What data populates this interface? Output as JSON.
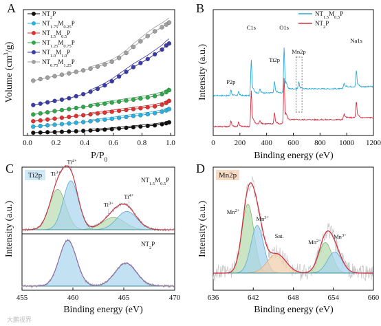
{
  "watermark": "大鹏视界",
  "chart_data": [
    {
      "panel": "A",
      "type": "scatter",
      "xlabel": "P/P0",
      "xlabel_main": "P/P",
      "xlabel_sub": "0",
      "ylabel": "Volume (cm³/g)",
      "ylabel_main": "Volume (cm",
      "ylabel_sup": "3",
      "ylabel_end": "/g)",
      "xlim": [
        0,
        1.0
      ],
      "xticks": [
        "0.0",
        "0.2",
        "0.4",
        "0.6",
        "0.8",
        "1.0"
      ],
      "legend_position": "top-left",
      "x": [
        0.04,
        0.09,
        0.14,
        0.19,
        0.24,
        0.29,
        0.34,
        0.39,
        0.44,
        0.49,
        0.54,
        0.59,
        0.64,
        0.69,
        0.74,
        0.79,
        0.84,
        0.89,
        0.94,
        0.97,
        0.99
      ],
      "series": [
        {
          "name": "NT2P",
          "label_parts": [
            [
              "NT",
              ""
            ],
            [
              "2",
              "sub"
            ],
            [
              "P",
              ""
            ]
          ],
          "color": "#111111",
          "values": [
            0.5,
            0.7,
            0.9,
            1.0,
            1.2,
            1.4,
            1.6,
            1.9,
            2.2,
            2.5,
            2.8,
            3.2,
            3.7,
            4.1,
            4.6,
            5.1,
            5.6,
            6.0,
            6.8,
            7.5,
            8.2
          ]
        },
        {
          "name": "NT1.75M0.25P",
          "label_parts": [
            [
              "NT",
              ""
            ],
            [
              "1.75",
              "sub"
            ],
            [
              "M",
              ""
            ],
            [
              "0.25",
              "sub"
            ],
            [
              "P",
              ""
            ]
          ],
          "color": "#2ab0e0",
          "values": [
            5.0,
            5.5,
            6.0,
            6.4,
            6.9,
            7.4,
            7.9,
            8.4,
            9.0,
            9.6,
            10.2,
            10.8,
            11.5,
            12.2,
            12.9,
            13.5,
            14.2,
            15.0,
            16.0,
            17.0,
            18.0
          ]
        },
        {
          "name": "NT1.5M0.5P",
          "label_parts": [
            [
              "NT",
              ""
            ],
            [
              "1.5",
              "sub"
            ],
            [
              "M",
              ""
            ],
            [
              "0.5",
              "sub"
            ],
            [
              "P",
              ""
            ]
          ],
          "color": "#e03030",
          "values": [
            9.0,
            9.6,
            10.3,
            10.9,
            11.6,
            12.2,
            12.9,
            13.5,
            14.1,
            14.8,
            15.4,
            16.0,
            16.7,
            17.3,
            18.0,
            18.6,
            19.3,
            20.0,
            21.2,
            22.5,
            24.0
          ]
        },
        {
          "name": "NT1.25M0.75P",
          "label_parts": [
            [
              "NT",
              ""
            ],
            [
              "1.25",
              "sub"
            ],
            [
              "M",
              ""
            ],
            [
              "0.75",
              "sub"
            ],
            [
              "P",
              ""
            ]
          ],
          "color": "#2ea84a",
          "values": [
            14.0,
            14.8,
            15.6,
            16.5,
            17.3,
            18.0,
            18.8,
            19.6,
            20.4,
            21.2,
            22.0,
            22.8,
            23.5,
            24.3,
            25.0,
            25.8,
            26.6,
            27.6,
            29.0,
            30.5,
            32.0
          ]
        },
        {
          "name": "NT1.0M1.0P",
          "label_parts": [
            [
              "NT",
              ""
            ],
            [
              "1.0",
              "sub"
            ],
            [
              "M",
              ""
            ],
            [
              "1.0",
              "sub"
            ],
            [
              "P",
              ""
            ]
          ],
          "color": "#3a3aa8",
          "values": [
            21.0,
            22.0,
            23.0,
            24.0,
            25.0,
            26.0,
            27.5,
            29.0,
            30.8,
            33.0,
            35.5,
            38.5,
            42.0,
            45.5,
            49.0,
            52.0,
            55.0,
            58.5,
            62.0,
            65.0,
            66.5
          ]
        },
        {
          "name": "NT0.75M1.25P",
          "label_parts": [
            [
              "NT",
              ""
            ],
            [
              "0.75",
              "sub"
            ],
            [
              "M",
              ""
            ],
            [
              "1.25",
              "sub"
            ],
            [
              "P",
              ""
            ]
          ],
          "color": "#a0a0a0",
          "values": [
            39.0,
            40.2,
            41.3,
            42.3,
            43.4,
            44.4,
            45.5,
            46.6,
            47.9,
            49.4,
            51.0,
            53.0,
            55.8,
            59.5,
            64.0,
            68.0,
            72.0,
            75.5,
            78.5,
            80.5,
            82.0
          ]
        }
      ]
    },
    {
      "panel": "B",
      "type": "line",
      "xlabel": "Binding energy (eV)",
      "ylabel": "Intensity (a.u.)",
      "xlim": [
        0,
        1200
      ],
      "xticks": [
        "0",
        "200",
        "400",
        "600",
        "800",
        "1000",
        "1200"
      ],
      "legend_position": "top-right",
      "series": [
        {
          "name": "NT1.5M0.5P",
          "label_parts": [
            [
              "NT",
              ""
            ],
            [
              "1.5",
              "sub"
            ],
            [
              "M",
              ""
            ],
            [
              "0.5",
              "sub"
            ],
            [
              "P",
              ""
            ]
          ],
          "color": "#29a9d8",
          "offset": 45
        },
        {
          "name": "NT2P",
          "label_parts": [
            [
              "NT",
              ""
            ],
            [
              "2",
              "sub"
            ],
            [
              "P",
              ""
            ]
          ],
          "color": "#d03040",
          "offset": 0
        }
      ],
      "peaks": [
        {
          "x": 133,
          "h": 8
        },
        {
          "x": 190,
          "h": 6
        },
        {
          "x": 285,
          "h": 48
        },
        {
          "x": 350,
          "h": 5
        },
        {
          "x": 459,
          "h": 15
        },
        {
          "x": 531,
          "h": 62
        },
        {
          "x": 641,
          "h": 10
        },
        {
          "x": 978,
          "h": 6
        },
        {
          "x": 1072,
          "h": 22
        }
      ],
      "annotations": [
        {
          "text": "P2p",
          "x": 133
        },
        {
          "text": "C1s",
          "x": 285
        },
        {
          "text": "Ti2p",
          "x": 459
        },
        {
          "text": "O1s",
          "x": 531
        },
        {
          "text": "Mn2p",
          "x": 641
        },
        {
          "text": "Na1s",
          "x": 1072
        }
      ]
    },
    {
      "panel": "C",
      "type": "line",
      "tag": "Ti2p",
      "xlabel": "Binding energy (eV)",
      "ylabel": "Intensity (a.u.)",
      "xlim": [
        455,
        470
      ],
      "xticks": [
        "455",
        "460",
        "465",
        "470"
      ],
      "top": {
        "label": "NT1.5M0.5P",
        "label_parts": [
          [
            "NT",
            ""
          ],
          [
            "1.5",
            "sub"
          ],
          [
            "M",
            ""
          ],
          [
            "0.5",
            "sub"
          ],
          [
            "P",
            ""
          ]
        ],
        "components": [
          {
            "name": "Ti3+",
            "center": 458.5,
            "sigma": 0.8,
            "amp": 0.66,
            "color": "#b8dcb0",
            "stroke": "#7fb878"
          },
          {
            "name": "Ti4+",
            "center": 459.8,
            "sigma": 0.75,
            "amp": 0.8,
            "color": "#a8d4ec",
            "stroke": "#5fa8d0"
          },
          {
            "name": "Ti3+",
            "center": 464.0,
            "sigma": 1.1,
            "amp": 0.2,
            "color": "#b8dcb0",
            "stroke": "#7fb878"
          },
          {
            "name": "Ti4+",
            "center": 465.3,
            "sigma": 1.0,
            "amp": 0.3,
            "color": "#a8d4ec",
            "stroke": "#5fa8d0"
          }
        ],
        "labels": [
          {
            "t": "Ti",
            "s": "3+",
            "x": 458.3
          },
          {
            "t": "Ti",
            "s": "4+",
            "x": 459.9
          },
          {
            "t": "Ti",
            "s": "3+",
            "x": 463.5
          },
          {
            "t": "Ti",
            "s": "4+",
            "x": 465.5
          }
        ]
      },
      "bottom": {
        "label": "NT2P",
        "label_parts": [
          [
            "NT",
            ""
          ],
          [
            "2",
            "sub"
          ],
          [
            "P",
            ""
          ]
        ],
        "components": [
          {
            "name": "Ti4+",
            "center": 459.5,
            "sigma": 0.85,
            "amp": 0.9,
            "color": "#a8d4ec",
            "stroke": "#5fa8d0"
          },
          {
            "name": "Ti4+",
            "center": 465.2,
            "sigma": 1.05,
            "amp": 0.45,
            "color": "#a8d4ec",
            "stroke": "#5fa8d0"
          }
        ]
      }
    },
    {
      "panel": "D",
      "type": "line",
      "tag": "Mn2p",
      "xlabel": "Binding energy (eV)",
      "ylabel": "Intensity (a.u.)",
      "xlim": [
        636,
        660
      ],
      "xticks": [
        "636",
        "642",
        "648",
        "654",
        "660"
      ],
      "components": [
        {
          "name": "Mn2+",
          "center": 641.2,
          "sigma": 0.9,
          "amp": 0.72,
          "color": "#b8dcb0",
          "stroke": "#7fb878"
        },
        {
          "name": "Mn3+",
          "center": 642.6,
          "sigma": 0.95,
          "amp": 0.5,
          "color": "#a8d4ec",
          "stroke": "#5fa8d0"
        },
        {
          "name": "Sat.",
          "center": 645.5,
          "sigma": 1.4,
          "amp": 0.2,
          "color": "#f2cfae",
          "stroke": "#e0a878"
        },
        {
          "name": "Mn2+",
          "center": 652.8,
          "sigma": 1.0,
          "amp": 0.32,
          "color": "#b8dcb0",
          "stroke": "#7fb878"
        },
        {
          "name": "Mn3+",
          "center": 654.2,
          "sigma": 1.1,
          "amp": 0.22,
          "color": "#a8d4ec",
          "stroke": "#5fa8d0"
        }
      ],
      "labels": [
        {
          "t": "Mn",
          "s": "2+",
          "x": 639.0
        },
        {
          "t": "Mn",
          "s": "3+",
          "x": 643.4
        },
        {
          "t": "Sat.",
          "s": "",
          "x": 645.9
        },
        {
          "t": "Mn",
          "s": "2+",
          "x": 651.2
        },
        {
          "t": "Mn",
          "s": "3+",
          "x": 655.0
        }
      ]
    }
  ]
}
